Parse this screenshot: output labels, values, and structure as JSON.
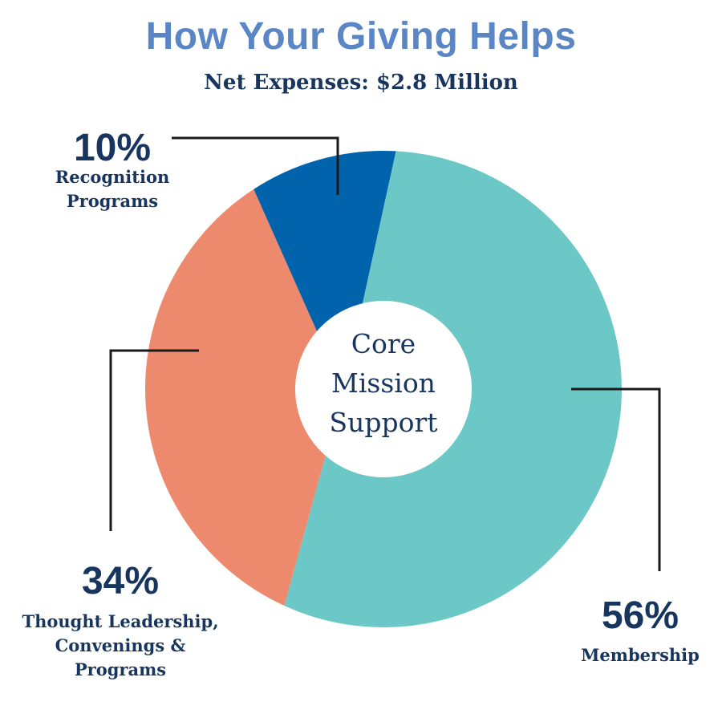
{
  "title": "How Your Giving Helps",
  "subtitle": "Net Expenses: $2.8 Million",
  "chart_data": {
    "type": "pie",
    "title": "How Your Giving Helps",
    "subtitle": "Net Expenses: $2.8 Million",
    "center_label": [
      "Core",
      "Mission",
      "Support"
    ],
    "slices": [
      {
        "label": "Membership",
        "label_lines": [
          "Membership"
        ],
        "value": 56,
        "display": "56%",
        "color": "#6cc8c6"
      },
      {
        "label": "Thought Leadership, Convenings & Programs",
        "label_lines": [
          "Thought Leadership,",
          "Convenings &",
          "Programs"
        ],
        "value": 34,
        "display": "34%",
        "color": "#ed8a6e"
      },
      {
        "label": "Recognition Programs",
        "label_lines": [
          "Recognition",
          "Programs"
        ],
        "value": 10,
        "display": "10%",
        "color": "#0263ad"
      }
    ]
  }
}
